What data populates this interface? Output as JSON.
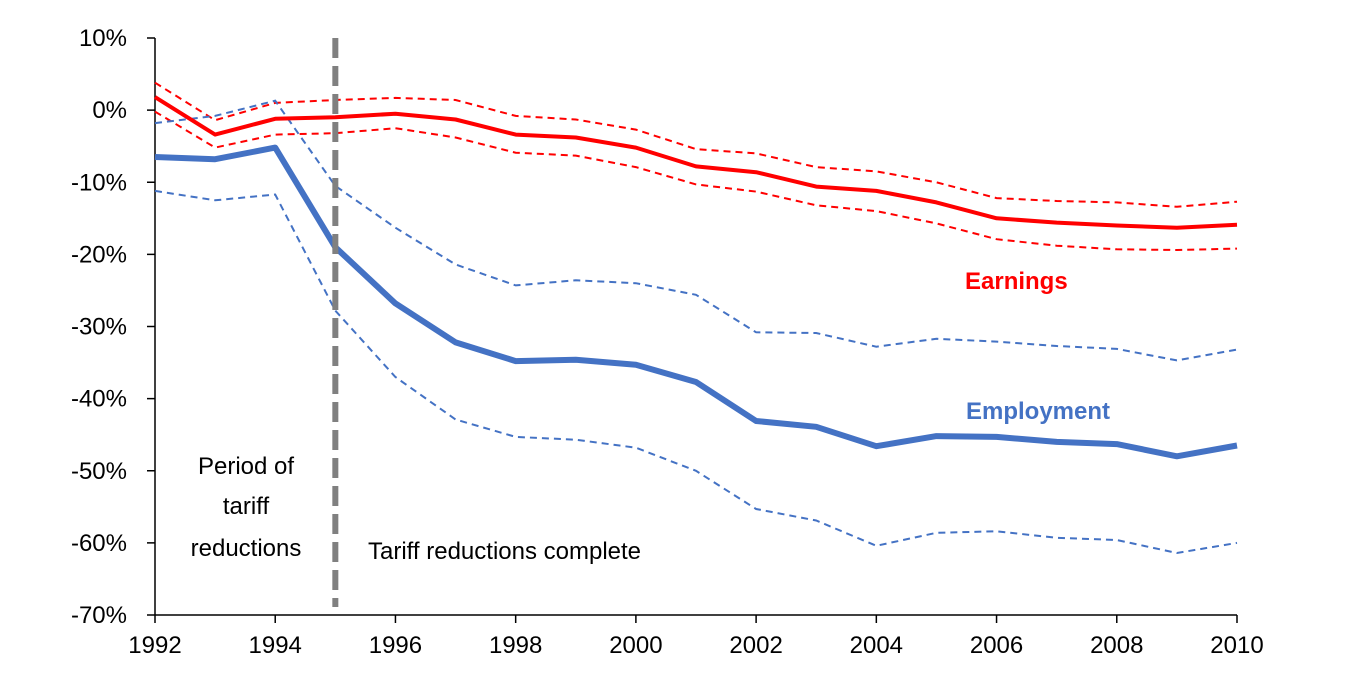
{
  "chart_data": {
    "type": "line",
    "title": "",
    "xlabel": "",
    "ylabel": "",
    "xlim": [
      1992,
      2010
    ],
    "ylim": [
      -70,
      10
    ],
    "grid": false,
    "x": [
      1992,
      1993,
      1994,
      1995,
      1996,
      1997,
      1998,
      1999,
      2000,
      2001,
      2002,
      2003,
      2004,
      2005,
      2006,
      2007,
      2008,
      2009,
      2010
    ],
    "x_ticks": [
      "1992",
      "1994",
      "1996",
      "1998",
      "2000",
      "2002",
      "2004",
      "2006",
      "2008",
      "2010"
    ],
    "y_ticks": [
      "10%",
      "0%",
      "-10%",
      "-20%",
      "-30%",
      "-40%",
      "-50%",
      "-60%",
      "-70%"
    ],
    "series": [
      {
        "name": "Earnings",
        "color": "#FF0000",
        "values": [
          1.8,
          -3.4,
          -1.2,
          -1.0,
          -0.5,
          -1.3,
          -3.4,
          -3.8,
          -5.2,
          -7.8,
          -8.6,
          -10.6,
          -11.2,
          -12.8,
          -15.0,
          -15.6,
          -16.0,
          -16.3,
          -15.9
        ],
        "upper": [
          3.8,
          -1.4,
          1.0,
          1.4,
          1.7,
          1.4,
          -0.8,
          -1.3,
          -2.7,
          -5.4,
          -6.0,
          -7.9,
          -8.5,
          -10.0,
          -12.2,
          -12.6,
          -12.8,
          -13.4,
          -12.7
        ],
        "lower": [
          -0.2,
          -5.2,
          -3.4,
          -3.2,
          -2.5,
          -3.8,
          -5.9,
          -6.3,
          -7.9,
          -10.3,
          -11.3,
          -13.2,
          -14.0,
          -15.7,
          -17.9,
          -18.8,
          -19.3,
          -19.4,
          -19.2
        ]
      },
      {
        "name": "Employment",
        "color": "#4472C4",
        "values": [
          -6.5,
          -6.8,
          -5.2,
          -19.0,
          -26.8,
          -32.2,
          -34.8,
          -34.6,
          -35.3,
          -37.7,
          -43.1,
          -43.9,
          -46.6,
          -45.2,
          -45.3,
          -46.0,
          -46.3,
          -48.0,
          -46.5
        ],
        "upper": [
          -1.8,
          -0.8,
          1.3,
          -10.5,
          -16.3,
          -21.4,
          -24.3,
          -23.6,
          -24.0,
          -25.6,
          -30.8,
          -30.9,
          -32.8,
          -31.7,
          -32.1,
          -32.7,
          -33.1,
          -34.7,
          -33.2
        ],
        "lower": [
          -11.2,
          -12.5,
          -11.7,
          -27.8,
          -37.0,
          -42.9,
          -45.3,
          -45.7,
          -46.8,
          -50.0,
          -55.3,
          -56.9,
          -60.4,
          -58.6,
          -58.4,
          -59.3,
          -59.6,
          -61.4,
          -60.0
        ]
      }
    ],
    "annotations": {
      "vertical_line_x": 1995,
      "period_label": [
        "Period of",
        "tariff",
        "reductions"
      ],
      "complete_label": "Tariff reductions complete"
    }
  }
}
